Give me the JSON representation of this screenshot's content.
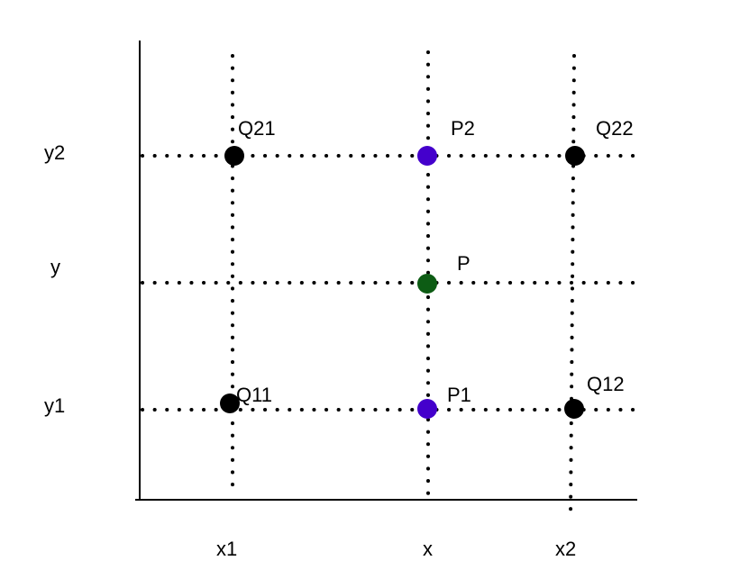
{
  "axis_labels": {
    "x_ticks": [
      "x1",
      "x",
      "x2"
    ],
    "y_ticks": [
      "y2",
      "y",
      "y1"
    ]
  },
  "points": {
    "Q21": "Q21",
    "P2": "P2",
    "Q22": "Q22",
    "P": "P",
    "Q11": "Q11",
    "P1": "P1",
    "Q12": "Q12"
  },
  "colors": {
    "axis": "#000000",
    "guide": "#000000",
    "corner_point": "#000000",
    "interpolated_point": "#4400cc",
    "target_point": "#0d5c14"
  }
}
